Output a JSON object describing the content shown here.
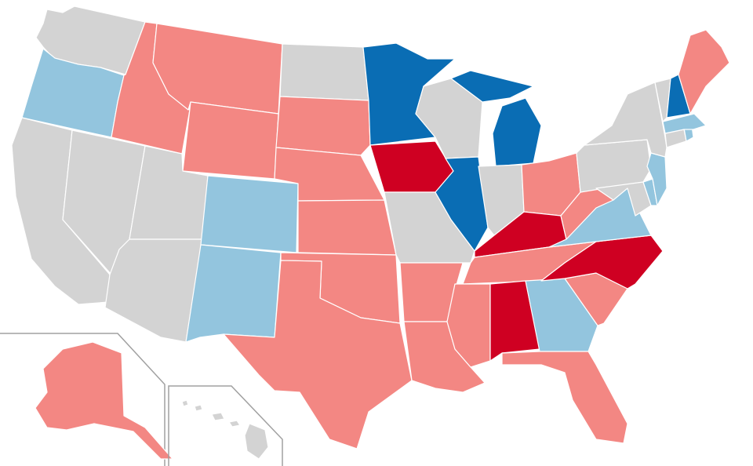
{
  "colors": {
    "strong-dem": "#0a6db4",
    "lean-dem": "#93c5de",
    "lean-rep": "#f38783",
    "strong-rep": "#cf0022",
    "none": "#d3d3d3"
  },
  "states": {
    "WA": "none",
    "OR": "lean-dem",
    "CA": "none",
    "NV": "none",
    "ID": "lean-rep",
    "MT": "lean-rep",
    "WY": "lean-rep",
    "UT": "none",
    "AZ": "none",
    "CO": "lean-dem",
    "NM": "lean-dem",
    "ND": "none",
    "SD": "lean-rep",
    "NE": "lean-rep",
    "KS": "lean-rep",
    "OK": "lean-rep",
    "TX": "lean-rep",
    "MN": "strong-dem",
    "IA": "strong-rep",
    "MO": "none",
    "AR": "lean-rep",
    "LA": "lean-rep",
    "WI": "none",
    "IL": "strong-dem",
    "MI": "strong-dem",
    "IN": "none",
    "OH": "lean-rep",
    "KY": "strong-rep",
    "TN": "lean-rep",
    "MS": "lean-rep",
    "AL": "strong-rep",
    "GA": "lean-dem",
    "FL": "lean-rep",
    "SC": "lean-rep",
    "NC": "strong-rep",
    "VA": "lean-dem",
    "WV": "lean-rep",
    "MD": "none",
    "DE": "lean-dem",
    "NJ": "lean-dem",
    "PA": "none",
    "NY": "none",
    "CT": "none",
    "RI": "lean-dem",
    "MA": "lean-dem",
    "VT": "none",
    "NH": "strong-dem",
    "ME": "lean-rep",
    "AK": "lean-rep",
    "HI": "none"
  }
}
